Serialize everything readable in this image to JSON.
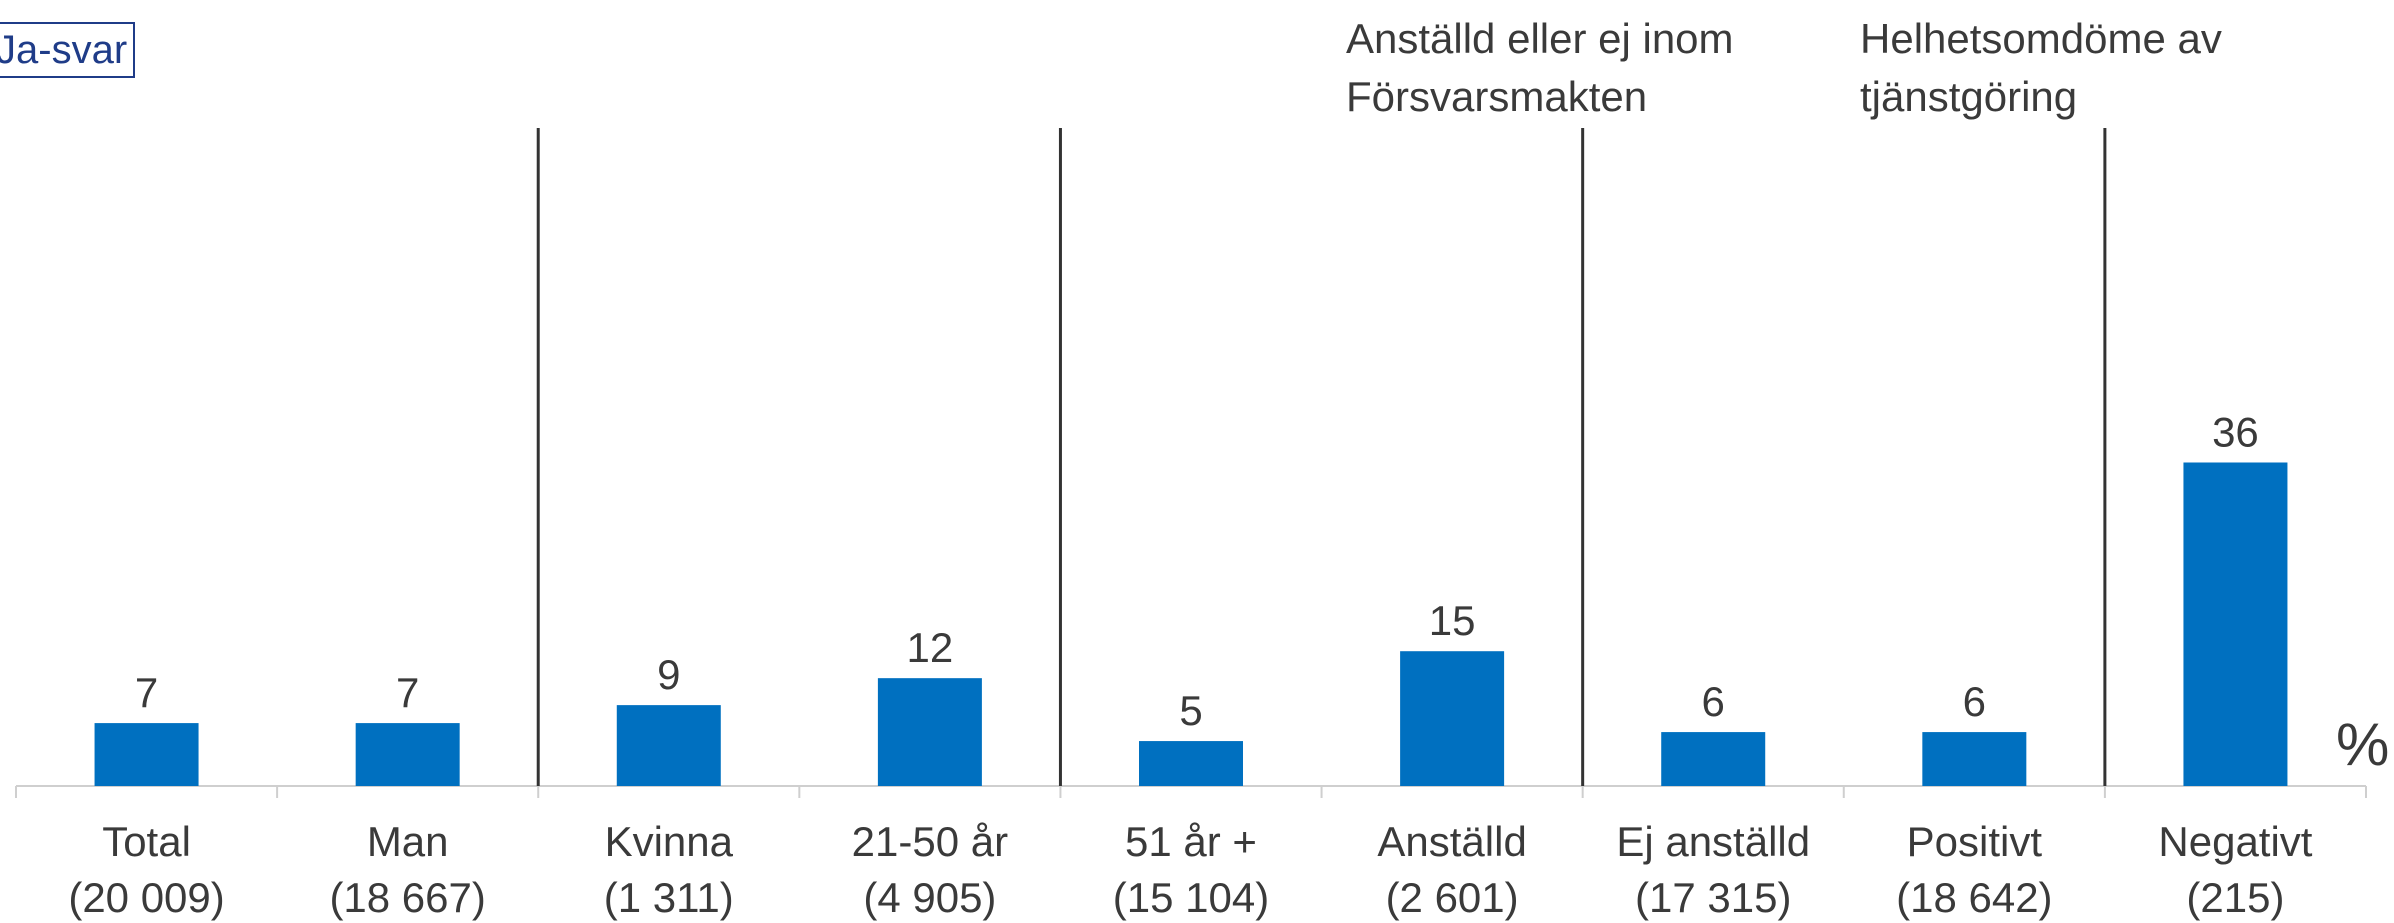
{
  "legend": {
    "label": "Ja-svar",
    "color": "#1f3c88"
  },
  "unit_label": "%",
  "group_titles": [
    {
      "line1": "Anställd eller ej inom",
      "line2": "Försvarsmakten"
    },
    {
      "line1": "Helhetsomdöme av",
      "line2": "tjänstgöring"
    }
  ],
  "chart_data": {
    "type": "bar",
    "categories": [
      "Total",
      "Man",
      "Kvinna",
      "21-50 år",
      "51 år +",
      "Anställd",
      "Ej anställd",
      "Positivt",
      "Negativt"
    ],
    "category_counts": [
      "(20 009)",
      "(18 667)",
      "(1 311)",
      "(4 905)",
      "(15 104)",
      "(2 601)",
      "(17 315)",
      "(18 642)",
      "(215)"
    ],
    "values": [
      7,
      7,
      9,
      12,
      5,
      15,
      6,
      6,
      36
    ],
    "ylim": [
      0,
      73
    ],
    "bar_color": "#0070c0",
    "separators_after": [
      1,
      3,
      5,
      7
    ],
    "grid": false
  }
}
